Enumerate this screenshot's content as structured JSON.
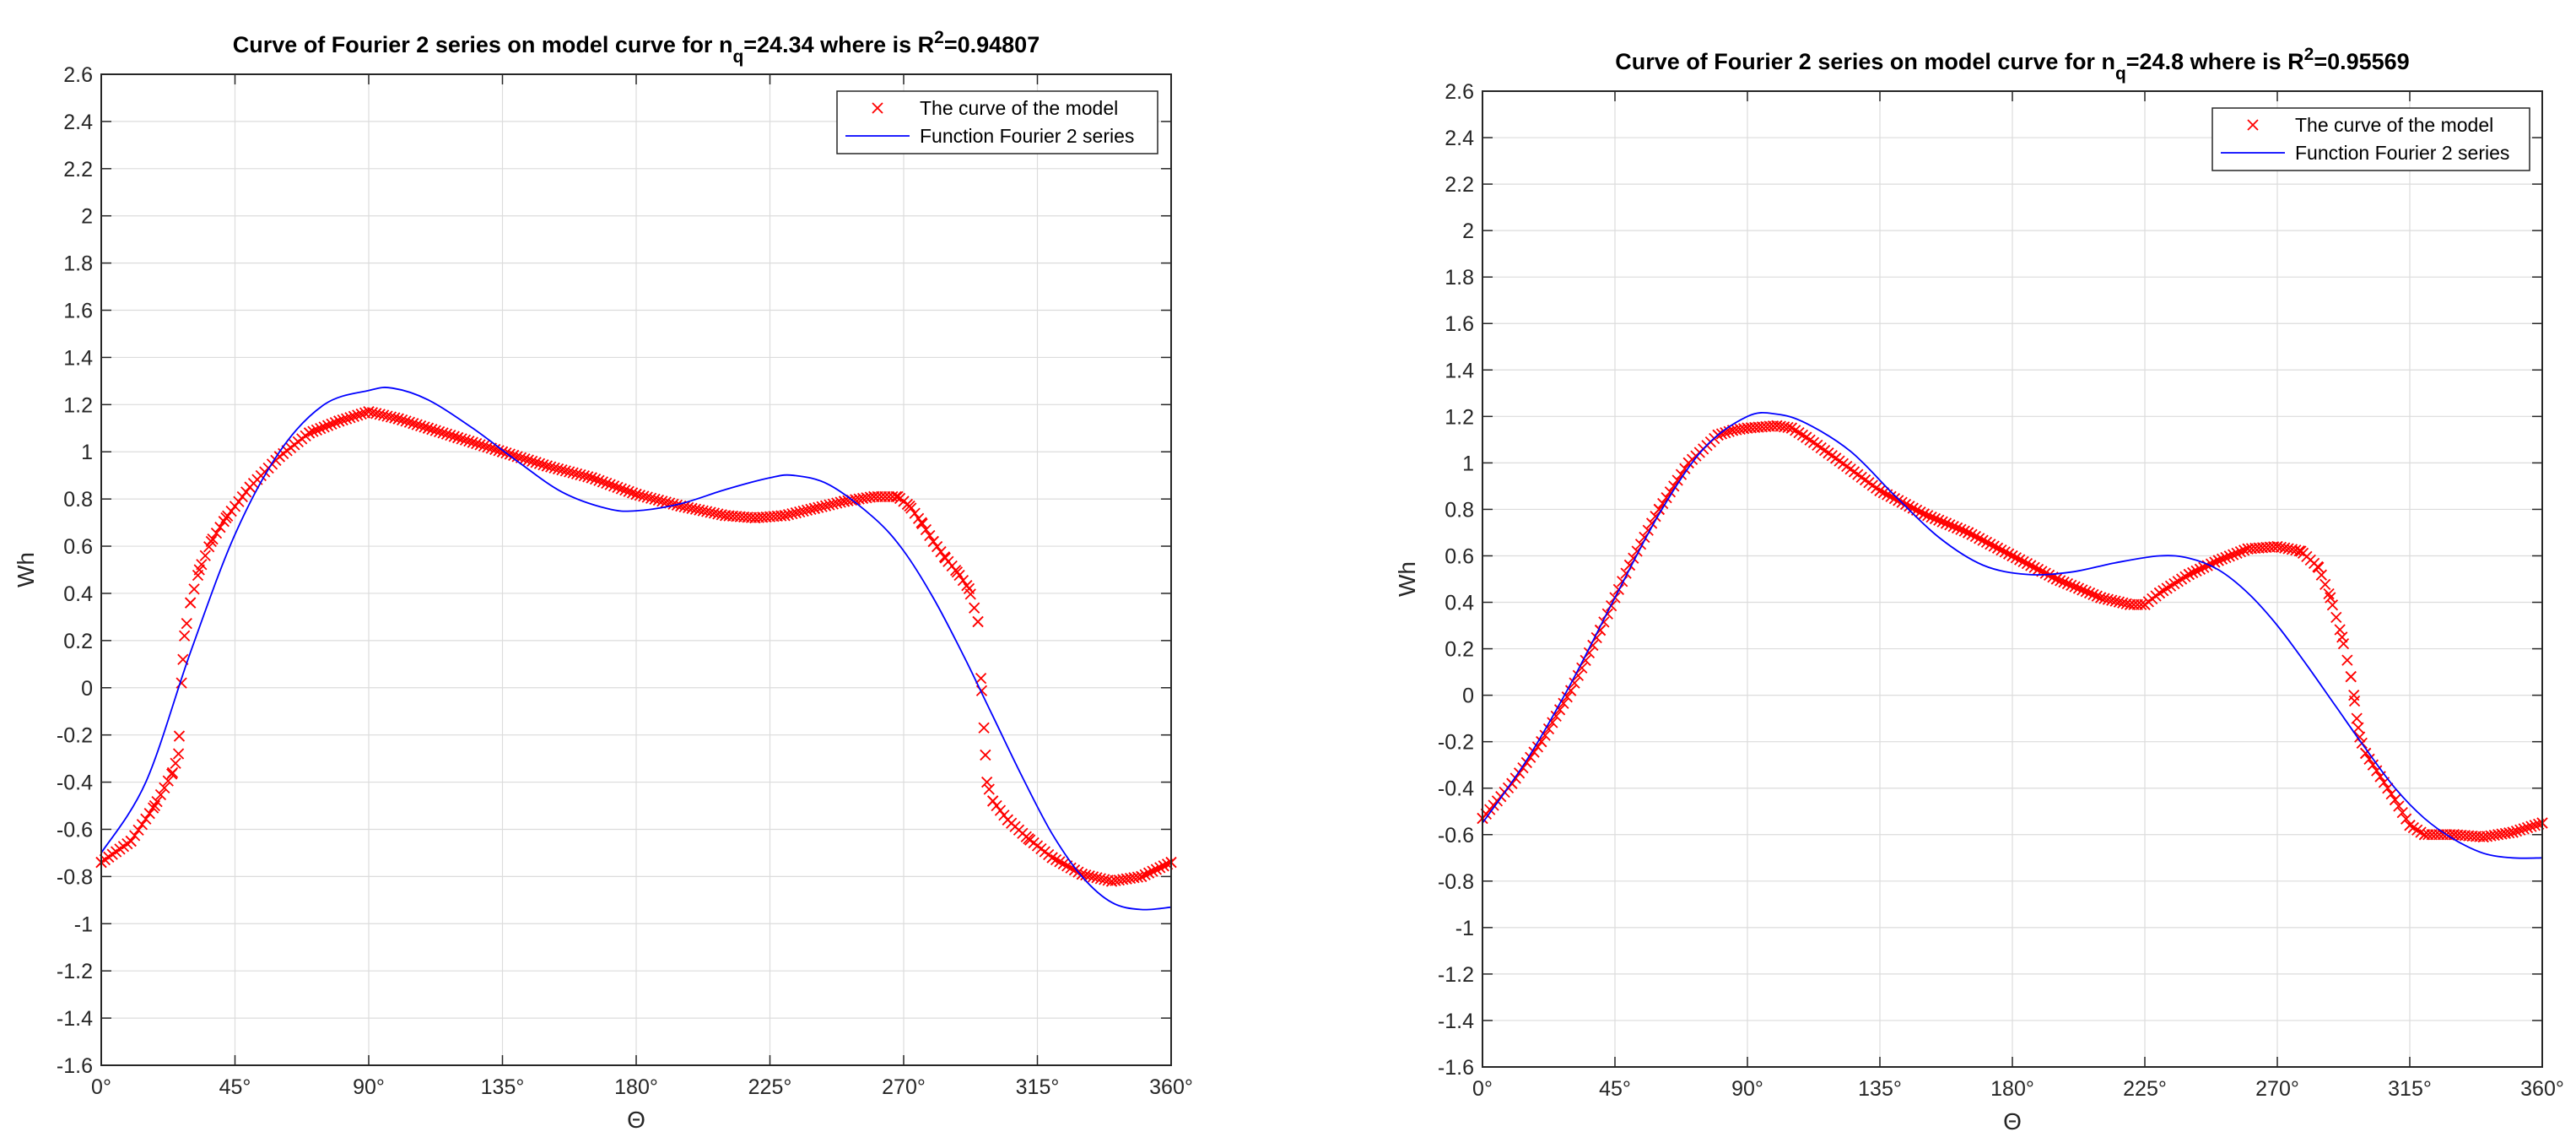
{
  "colors": {
    "model_marker": "#ff0000",
    "fourier_line": "#0000ff",
    "grid": "#dcdcdc",
    "axis": "#262626",
    "background": "#ffffff"
  },
  "chart_data": [
    {
      "type": "line",
      "title": "Curve of Fourier 2 series on model curve for n",
      "title_sub": "q",
      "title_mid": "=24.34 where is R",
      "title_sup": "2",
      "title_end": "=0.94807",
      "xlabel": "Θ",
      "ylabel": "Wh",
      "xlim": [
        0,
        360
      ],
      "ylim": [
        -1.6,
        2.6
      ],
      "grid": true,
      "legend_position": "top-right",
      "xticks": [
        0,
        45,
        90,
        135,
        180,
        225,
        270,
        315,
        360
      ],
      "xtick_labels": [
        "0°",
        "45°",
        "90°",
        "135°",
        "180°",
        "225°",
        "270°",
        "315°",
        "360°"
      ],
      "yticks": [
        -1.6,
        -1.4,
        -1.2,
        -1,
        -0.8,
        -0.6,
        -0.4,
        -0.2,
        0,
        0.2,
        0.4,
        0.6,
        0.8,
        1,
        1.2,
        1.4,
        1.6,
        1.8,
        2,
        2.2,
        2.4,
        2.6
      ],
      "ytick_labels": [
        "-1.6",
        "-1.4",
        "-1.2",
        "-1",
        "-0.8",
        "-0.6",
        "-0.4",
        "-0.2",
        "0",
        "0.2",
        "0.4",
        "0.6",
        "0.8",
        "1",
        "1.2",
        "1.4",
        "1.6",
        "1.8",
        "2",
        "2.2",
        "2.4",
        "2.6"
      ],
      "series": [
        {
          "name": "The curve of the model",
          "style": "markers-x",
          "x": [
            0,
            10,
            18,
            24,
            26,
            27,
            28,
            30,
            33,
            37,
            42,
            50,
            60,
            70,
            80,
            90,
            100,
            110,
            120,
            135,
            150,
            165,
            180,
            195,
            210,
            220,
            230,
            240,
            250,
            260,
            268,
            272,
            276,
            280,
            284,
            288,
            292,
            295,
            296,
            297,
            298,
            300,
            305,
            312,
            320,
            330,
            340,
            350,
            360
          ],
          "y": [
            -0.74,
            -0.65,
            -0.5,
            -0.36,
            -0.28,
            0.02,
            0.22,
            0.36,
            0.5,
            0.62,
            0.72,
            0.85,
            0.98,
            1.08,
            1.13,
            1.17,
            1.14,
            1.1,
            1.06,
            1.0,
            0.94,
            0.89,
            0.82,
            0.77,
            0.73,
            0.72,
            0.73,
            0.76,
            0.79,
            0.81,
            0.81,
            0.77,
            0.7,
            0.62,
            0.55,
            0.49,
            0.42,
            0.28,
            0.04,
            -0.17,
            -0.4,
            -0.48,
            -0.56,
            -0.64,
            -0.72,
            -0.79,
            -0.82,
            -0.8,
            -0.74
          ]
        },
        {
          "name": "Function Fourier 2 series",
          "style": "line",
          "x": [
            0,
            15,
            30,
            45,
            60,
            75,
            90,
            98,
            110,
            125,
            140,
            155,
            170,
            180,
            195,
            210,
            225,
            233,
            245,
            260,
            270,
            280,
            290,
            300,
            310,
            320,
            330,
            340,
            350,
            360
          ],
          "y": [
            -0.7,
            -0.4,
            0.15,
            0.65,
            1.0,
            1.2,
            1.26,
            1.27,
            1.22,
            1.1,
            0.96,
            0.83,
            0.76,
            0.75,
            0.78,
            0.84,
            0.89,
            0.9,
            0.86,
            0.72,
            0.58,
            0.38,
            0.14,
            -0.12,
            -0.38,
            -0.62,
            -0.8,
            -0.91,
            -0.94,
            -0.93
          ]
        }
      ]
    },
    {
      "type": "line",
      "title": "Curve of Fourier 2 series on model curve for n",
      "title_sub": "q",
      "title_mid": "=24.8 where is R",
      "title_sup": "2",
      "title_end": "=0.95569",
      "xlabel": "Θ",
      "ylabel": "Wh",
      "xlim": [
        0,
        360
      ],
      "ylim": [
        -1.6,
        2.6
      ],
      "grid": true,
      "legend_position": "top-right",
      "xticks": [
        0,
        45,
        90,
        135,
        180,
        225,
        270,
        315,
        360
      ],
      "xtick_labels": [
        "0°",
        "45°",
        "90°",
        "135°",
        "180°",
        "225°",
        "270°",
        "315°",
        "360°"
      ],
      "yticks": [
        -1.6,
        -1.4,
        -1.2,
        -1,
        -0.8,
        -0.6,
        -0.4,
        -0.2,
        0,
        0.2,
        0.4,
        0.6,
        0.8,
        1,
        1.2,
        1.4,
        1.6,
        1.8,
        2,
        2.2,
        2.4,
        2.6
      ],
      "ytick_labels": [
        "-1.6",
        "-1.4",
        "-1.2",
        "-1",
        "-0.8",
        "-0.6",
        "-0.4",
        "-0.2",
        "0",
        "0.2",
        "0.4",
        "0.6",
        "0.8",
        "1",
        "1.2",
        "1.4",
        "1.6",
        "1.8",
        "2",
        "2.2",
        "2.4",
        "2.6"
      ],
      "series": [
        {
          "name": "The curve of the model",
          "style": "markers-x",
          "x": [
            0,
            10,
            20,
            30,
            40,
            50,
            60,
            70,
            80,
            85,
            90,
            100,
            105,
            110,
            120,
            135,
            150,
            165,
            180,
            195,
            210,
            220,
            225,
            230,
            240,
            250,
            260,
            270,
            278,
            284,
            288,
            292,
            295,
            296,
            297,
            298,
            300,
            305,
            310,
            315,
            320,
            330,
            340,
            350,
            360
          ],
          "y": [
            -0.53,
            -0.38,
            -0.2,
            0.02,
            0.28,
            0.56,
            0.8,
            1.0,
            1.12,
            1.14,
            1.15,
            1.16,
            1.15,
            1.11,
            1.02,
            0.88,
            0.78,
            0.7,
            0.6,
            0.5,
            0.42,
            0.39,
            0.39,
            0.44,
            0.52,
            0.58,
            0.63,
            0.64,
            0.62,
            0.55,
            0.42,
            0.25,
            0.08,
            0.0,
            -0.1,
            -0.18,
            -0.25,
            -0.35,
            -0.45,
            -0.56,
            -0.6,
            -0.6,
            -0.61,
            -0.59,
            -0.55
          ]
        },
        {
          "name": "Function Fourier 2 series",
          "style": "line",
          "x": [
            0,
            15,
            30,
            45,
            60,
            75,
            90,
            100,
            110,
            125,
            140,
            155,
            170,
            185,
            200,
            215,
            230,
            240,
            250,
            260,
            270,
            280,
            290,
            300,
            310,
            320,
            330,
            340,
            350,
            360
          ],
          "y": [
            -0.55,
            -0.28,
            0.05,
            0.42,
            0.78,
            1.06,
            1.2,
            1.21,
            1.17,
            1.05,
            0.86,
            0.68,
            0.56,
            0.52,
            0.53,
            0.57,
            0.6,
            0.59,
            0.54,
            0.44,
            0.3,
            0.13,
            -0.05,
            -0.23,
            -0.4,
            -0.53,
            -0.62,
            -0.68,
            -0.7,
            -0.7
          ]
        }
      ]
    }
  ]
}
